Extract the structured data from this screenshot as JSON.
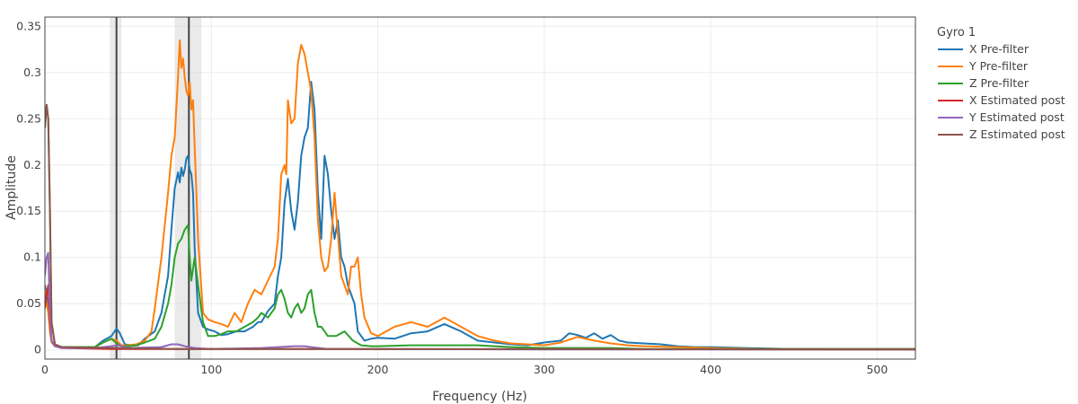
{
  "chart_data": {
    "type": "line",
    "xlabel": "Frequency (Hz)",
    "ylabel": "Amplitude",
    "xlim": [
      0,
      523
    ],
    "ylim": [
      -0.01,
      0.36
    ],
    "x_ticks": [
      0,
      100,
      200,
      300,
      400,
      500
    ],
    "y_ticks": [
      0,
      0.05,
      0.1,
      0.15,
      0.2,
      0.25,
      0.3,
      0.35
    ],
    "x_tick_labels": [
      "0",
      "100",
      "200",
      "300",
      "400",
      "500"
    ],
    "y_tick_labels": [
      "0",
      "0.05",
      "0.1",
      "0.15",
      "0.2",
      "0.25",
      "0.3",
      "0.35"
    ],
    "grid": true,
    "legend_position": "right",
    "legend_title": "Gyro 1",
    "notch_lines": [
      {
        "center": 43,
        "band": [
          39,
          46
        ]
      },
      {
        "center": 86.5,
        "band": [
          78,
          94
        ]
      }
    ],
    "series": [
      {
        "name": "X Pre-filter",
        "color": "#1f77b4",
        "x": [
          0,
          1,
          2,
          3,
          4,
          6,
          10,
          20,
          30,
          35,
          40,
          43,
          45,
          48,
          52,
          56,
          60,
          66,
          70,
          74,
          76,
          78,
          80,
          81,
          82,
          83,
          84,
          85,
          86,
          87,
          88,
          89,
          90,
          92,
          95,
          98,
          102,
          106,
          110,
          115,
          120,
          125,
          128,
          130,
          134,
          138,
          140,
          142,
          144,
          146,
          148,
          150,
          152,
          154,
          156,
          158,
          160,
          162,
          164,
          166,
          168,
          170,
          172,
          174,
          176,
          178,
          180,
          182,
          184,
          186,
          188,
          192,
          196,
          200,
          210,
          220,
          230,
          240,
          250,
          260,
          270,
          280,
          290,
          300,
          310,
          315,
          320,
          325,
          330,
          335,
          340,
          345,
          350,
          360,
          370,
          380,
          390,
          400,
          420,
          450,
          523
        ],
        "y": [
          0.07,
          0.06,
          0.045,
          0.02,
          0.01,
          0.005,
          0.003,
          0.003,
          0.003,
          0.01,
          0.015,
          0.023,
          0.018,
          0.006,
          0.005,
          0.005,
          0.012,
          0.02,
          0.04,
          0.08,
          0.13,
          0.175,
          0.192,
          0.181,
          0.197,
          0.188,
          0.195,
          0.207,
          0.21,
          0.195,
          0.19,
          0.17,
          0.11,
          0.04,
          0.025,
          0.022,
          0.02,
          0.016,
          0.017,
          0.02,
          0.02,
          0.025,
          0.03,
          0.03,
          0.042,
          0.05,
          0.08,
          0.1,
          0.16,
          0.185,
          0.15,
          0.13,
          0.16,
          0.21,
          0.23,
          0.24,
          0.29,
          0.26,
          0.17,
          0.12,
          0.21,
          0.19,
          0.15,
          0.12,
          0.14,
          0.1,
          0.09,
          0.07,
          0.06,
          0.05,
          0.02,
          0.01,
          0.012,
          0.013,
          0.012,
          0.018,
          0.02,
          0.028,
          0.02,
          0.01,
          0.008,
          0.006,
          0.005,
          0.008,
          0.01,
          0.018,
          0.016,
          0.013,
          0.018,
          0.012,
          0.016,
          0.01,
          0.008,
          0.007,
          0.006,
          0.004,
          0.003,
          0.003,
          0.002,
          0.001,
          0.001
        ]
      },
      {
        "name": "Y Pre-filter",
        "color": "#ff7f0e",
        "x": [
          0,
          1,
          2,
          3,
          4,
          6,
          10,
          20,
          30,
          35,
          40,
          43,
          46,
          50,
          55,
          60,
          64,
          66,
          70,
          74,
          76,
          78,
          80,
          81,
          82,
          83,
          84,
          85,
          86,
          87,
          88,
          89,
          90,
          92,
          95,
          98,
          102,
          106,
          110,
          114,
          118,
          122,
          126,
          130,
          134,
          138,
          140,
          142,
          144,
          145,
          146,
          148,
          150,
          152,
          154,
          156,
          158,
          160,
          162,
          164,
          166,
          168,
          170,
          172,
          174,
          176,
          178,
          180,
          182,
          184,
          186,
          188,
          190,
          192,
          196,
          200,
          210,
          220,
          230,
          240,
          250,
          260,
          270,
          280,
          290,
          300,
          310,
          320,
          330,
          340,
          350,
          360,
          380,
          400,
          430,
          450,
          523
        ],
        "y": [
          0.065,
          0.05,
          0.04,
          0.02,
          0.008,
          0.004,
          0.003,
          0.003,
          0.003,
          0.008,
          0.012,
          0.01,
          0.005,
          0.005,
          0.006,
          0.01,
          0.02,
          0.045,
          0.1,
          0.17,
          0.21,
          0.23,
          0.295,
          0.335,
          0.305,
          0.315,
          0.295,
          0.28,
          0.275,
          0.29,
          0.26,
          0.27,
          0.22,
          0.12,
          0.04,
          0.033,
          0.03,
          0.028,
          0.025,
          0.04,
          0.03,
          0.05,
          0.065,
          0.06,
          0.075,
          0.09,
          0.12,
          0.19,
          0.2,
          0.19,
          0.27,
          0.245,
          0.25,
          0.31,
          0.33,
          0.32,
          0.3,
          0.28,
          0.23,
          0.14,
          0.1,
          0.085,
          0.09,
          0.12,
          0.17,
          0.125,
          0.08,
          0.07,
          0.06,
          0.09,
          0.09,
          0.1,
          0.06,
          0.035,
          0.018,
          0.015,
          0.025,
          0.03,
          0.025,
          0.035,
          0.025,
          0.015,
          0.01,
          0.007,
          0.006,
          0.005,
          0.008,
          0.014,
          0.01,
          0.007,
          0.005,
          0.004,
          0.003,
          0.002,
          0.001,
          0.001,
          0.001
        ]
      },
      {
        "name": "Z Pre-filter",
        "color": "#2ca02c",
        "x": [
          0,
          1,
          2,
          3,
          4,
          6,
          10,
          20,
          30,
          35,
          40,
          43,
          46,
          50,
          55,
          60,
          66,
          70,
          74,
          76,
          78,
          80,
          82,
          84,
          86,
          87,
          88,
          90,
          92,
          95,
          98,
          102,
          106,
          110,
          115,
          120,
          125,
          128,
          130,
          134,
          138,
          140,
          142,
          144,
          146,
          148,
          150,
          152,
          154,
          156,
          158,
          160,
          162,
          164,
          166,
          168,
          170,
          175,
          180,
          185,
          190,
          196,
          200,
          220,
          240,
          260,
          280,
          300,
          320,
          340,
          360,
          380,
          400,
          450,
          523
        ],
        "y": [
          0.24,
          0.265,
          0.25,
          0.15,
          0.03,
          0.006,
          0.003,
          0.003,
          0.003,
          0.008,
          0.012,
          0.007,
          0.004,
          0.004,
          0.005,
          0.008,
          0.012,
          0.025,
          0.05,
          0.07,
          0.1,
          0.115,
          0.12,
          0.13,
          0.135,
          0.1,
          0.075,
          0.1,
          0.07,
          0.03,
          0.015,
          0.015,
          0.017,
          0.02,
          0.02,
          0.025,
          0.03,
          0.035,
          0.04,
          0.035,
          0.045,
          0.06,
          0.065,
          0.055,
          0.04,
          0.035,
          0.045,
          0.05,
          0.04,
          0.045,
          0.06,
          0.065,
          0.04,
          0.025,
          0.025,
          0.02,
          0.015,
          0.015,
          0.02,
          0.01,
          0.005,
          0.004,
          0.004,
          0.005,
          0.005,
          0.005,
          0.003,
          0.002,
          0.002,
          0.002,
          0.001,
          0.001,
          0.001,
          0.001,
          0.001
        ]
      },
      {
        "name": "X Estimated post",
        "color": "#d62728",
        "x": [
          0,
          1,
          2,
          3,
          4,
          6,
          10,
          40,
          80,
          150,
          523
        ],
        "y": [
          0.045,
          0.06,
          0.07,
          0.03,
          0.01,
          0.004,
          0.002,
          0.001,
          0.001,
          0.001,
          0.0005
        ]
      },
      {
        "name": "Y Estimated post",
        "color": "#9467bd",
        "x": [
          0,
          1,
          2,
          3,
          4,
          6,
          10,
          30,
          40,
          44,
          50,
          70,
          76,
          80,
          84,
          90,
          100,
          130,
          140,
          150,
          156,
          160,
          170,
          200,
          300,
          523
        ],
        "y": [
          0.08,
          0.1,
          0.105,
          0.04,
          0.01,
          0.004,
          0.002,
          0.002,
          0.004,
          0.005,
          0.002,
          0.003,
          0.006,
          0.006,
          0.004,
          0.002,
          0.001,
          0.002,
          0.003,
          0.004,
          0.004,
          0.003,
          0.001,
          0.0008,
          0.0005,
          0.0003
        ]
      },
      {
        "name": "Z Estimated post",
        "color": "#8c564b",
        "x": [
          0,
          1,
          2,
          3,
          4,
          6,
          10,
          40,
          80,
          150,
          523
        ],
        "y": [
          0.24,
          0.265,
          0.25,
          0.15,
          0.03,
          0.006,
          0.003,
          0.002,
          0.001,
          0.001,
          0.0005
        ]
      }
    ]
  }
}
